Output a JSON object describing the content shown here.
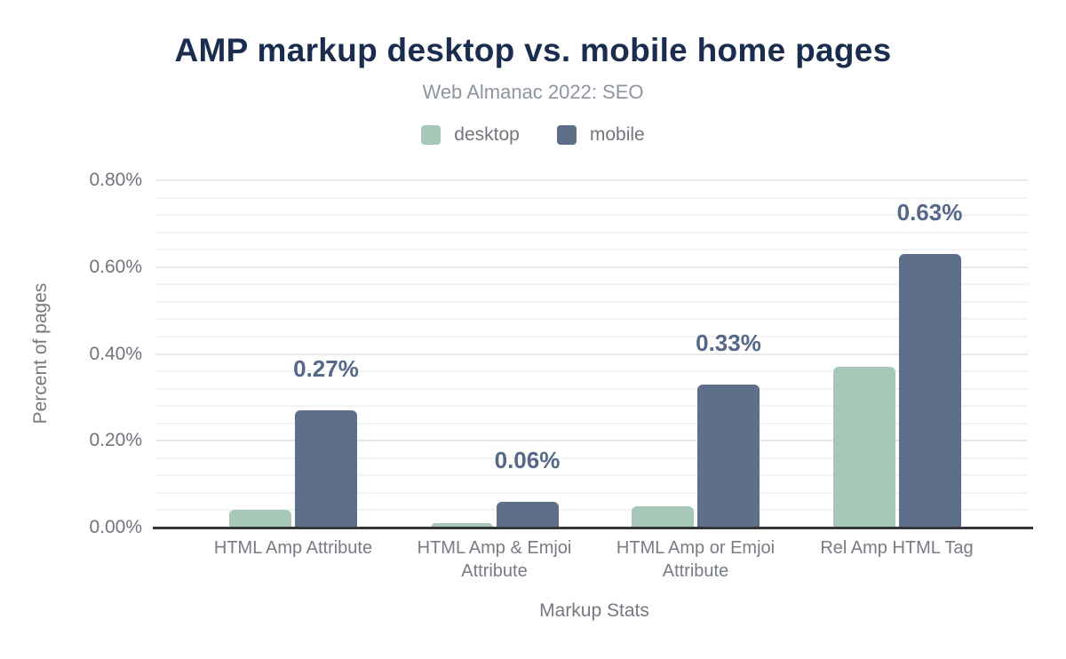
{
  "header": {
    "title": "AMP markup desktop vs. mobile home pages",
    "subtitle": "Web Almanac 2022: SEO"
  },
  "chart_data": {
    "type": "bar",
    "title": "AMP markup desktop vs. mobile home pages",
    "subtitle": "Web Almanac 2022: SEO",
    "xlabel": "Markup Stats",
    "ylabel": "Percent of pages",
    "categories": [
      "HTML Amp Attribute",
      "HTML Amp & Emjoi Attribute",
      "HTML Amp or Emjoi Attribute",
      "Rel Amp HTML Tag"
    ],
    "series": [
      {
        "name": "desktop",
        "color": "#a7c8b8",
        "values": [
          0.04,
          0.01,
          0.05,
          0.37
        ]
      },
      {
        "name": "mobile",
        "color": "#5e7089",
        "values": [
          0.27,
          0.06,
          0.33,
          0.63
        ],
        "labels": [
          "0.27%",
          "0.06%",
          "0.33%",
          "0.63%"
        ]
      }
    ],
    "ylim": [
      0,
      0.8
    ],
    "yticks": [
      "0.00%",
      "0.20%",
      "0.40%",
      "0.60%",
      "0.80%"
    ],
    "minor_step": 0.04,
    "major_step": 0.2,
    "grid": "horizontal-on",
    "legend_position": "top"
  },
  "colors": {
    "title": "#1b2d4f",
    "subtitle": "#8f959e",
    "axis_text": "#75797f",
    "value_label": "#556889",
    "axis_line": "#37373a",
    "desktop": "#a7c8b8",
    "mobile": "#5e7089"
  }
}
